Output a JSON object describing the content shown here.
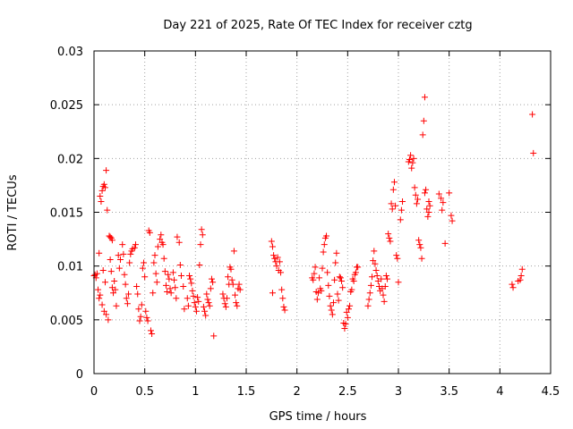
{
  "chart_data": {
    "type": "scatter",
    "title": "Day 221 of 2025, Rate Of TEC Index for receiver cztg",
    "xlabel": "GPS time / hours",
    "ylabel": "ROTI / TECUs",
    "xlim": [
      0,
      4.5
    ],
    "ylim": [
      0,
      0.03
    ],
    "xticks": [
      0,
      0.5,
      1,
      1.5,
      2,
      2.5,
      3,
      3.5,
      4,
      4.5
    ],
    "xtick_labels": [
      "0",
      "0.5",
      "1",
      "1.5",
      "2",
      "2.5",
      "3",
      "3.5",
      "4",
      "4.5"
    ],
    "yticks": [
      0,
      0.005,
      0.01,
      0.015,
      0.02,
      0.025,
      0.03
    ],
    "ytick_labels": [
      "0",
      "0.005",
      "0.01",
      "0.015",
      "0.02",
      "0.025",
      "0.03"
    ],
    "grid": true,
    "marker": "+",
    "marker_color": "#ff0000",
    "series": [
      {
        "name": "ROTI",
        "points": [
          [
            0.0,
            0.0091
          ],
          [
            0.01,
            0.0092
          ],
          [
            0.02,
            0.0089
          ],
          [
            0.03,
            0.0093
          ],
          [
            0.04,
            0.0078
          ],
          [
            0.05,
            0.007
          ],
          [
            0.06,
            0.0073
          ],
          [
            0.05,
            0.0112
          ],
          [
            0.06,
            0.0165
          ],
          [
            0.07,
            0.016
          ],
          [
            0.08,
            0.017
          ],
          [
            0.09,
            0.0174
          ],
          [
            0.1,
            0.0176
          ],
          [
            0.11,
            0.0173
          ],
          [
            0.12,
            0.0189
          ],
          [
            0.13,
            0.0152
          ],
          [
            0.08,
            0.0064
          ],
          [
            0.1,
            0.0058
          ],
          [
            0.12,
            0.0055
          ],
          [
            0.14,
            0.005
          ],
          [
            0.09,
            0.0096
          ],
          [
            0.11,
            0.0085
          ],
          [
            0.15,
            0.0128
          ],
          [
            0.16,
            0.0127
          ],
          [
            0.17,
            0.0126
          ],
          [
            0.18,
            0.0124
          ],
          [
            0.16,
            0.0106
          ],
          [
            0.17,
            0.0095
          ],
          [
            0.18,
            0.008
          ],
          [
            0.19,
            0.0075
          ],
          [
            0.2,
            0.0086
          ],
          [
            0.21,
            0.0078
          ],
          [
            0.22,
            0.0063
          ],
          [
            0.24,
            0.011
          ],
          [
            0.25,
            0.0098
          ],
          [
            0.26,
            0.0106
          ],
          [
            0.28,
            0.012
          ],
          [
            0.29,
            0.0111
          ],
          [
            0.3,
            0.0092
          ],
          [
            0.31,
            0.0083
          ],
          [
            0.32,
            0.007
          ],
          [
            0.33,
            0.0065
          ],
          [
            0.34,
            0.0074
          ],
          [
            0.35,
            0.0103
          ],
          [
            0.36,
            0.0111
          ],
          [
            0.37,
            0.0114
          ],
          [
            0.38,
            0.0116
          ],
          [
            0.4,
            0.0117
          ],
          [
            0.41,
            0.012
          ],
          [
            0.42,
            0.0081
          ],
          [
            0.43,
            0.0074
          ],
          [
            0.44,
            0.006
          ],
          [
            0.45,
            0.0049
          ],
          [
            0.46,
            0.0053
          ],
          [
            0.47,
            0.0064
          ],
          [
            0.48,
            0.0098
          ],
          [
            0.49,
            0.0103
          ],
          [
            0.5,
            0.009
          ],
          [
            0.51,
            0.0058
          ],
          [
            0.52,
            0.0052
          ],
          [
            0.53,
            0.0049
          ],
          [
            0.54,
            0.0133
          ],
          [
            0.55,
            0.0131
          ],
          [
            0.56,
            0.004
          ],
          [
            0.57,
            0.0037
          ],
          [
            0.58,
            0.0075
          ],
          [
            0.59,
            0.0103
          ],
          [
            0.6,
            0.011
          ],
          [
            0.61,
            0.0093
          ],
          [
            0.62,
            0.0085
          ],
          [
            0.63,
            0.0118
          ],
          [
            0.65,
            0.0125
          ],
          [
            0.66,
            0.0129
          ],
          [
            0.67,
            0.0122
          ],
          [
            0.68,
            0.012
          ],
          [
            0.69,
            0.0107
          ],
          [
            0.7,
            0.0095
          ],
          [
            0.71,
            0.0082
          ],
          [
            0.72,
            0.0076
          ],
          [
            0.73,
            0.0092
          ],
          [
            0.74,
            0.0088
          ],
          [
            0.75,
            0.0079
          ],
          [
            0.76,
            0.0075
          ],
          [
            0.78,
            0.0094
          ],
          [
            0.79,
            0.0087
          ],
          [
            0.8,
            0.008
          ],
          [
            0.81,
            0.007
          ],
          [
            0.82,
            0.0127
          ],
          [
            0.84,
            0.0122
          ],
          [
            0.85,
            0.0101
          ],
          [
            0.86,
            0.0091
          ],
          [
            0.88,
            0.0081
          ],
          [
            0.89,
            0.006
          ],
          [
            0.92,
            0.007
          ],
          [
            0.93,
            0.0063
          ],
          [
            0.94,
            0.0091
          ],
          [
            0.95,
            0.0088
          ],
          [
            0.96,
            0.0084
          ],
          [
            0.97,
            0.0077
          ],
          [
            0.98,
            0.0072
          ],
          [
            0.99,
            0.0066
          ],
          [
            1.0,
            0.0062
          ],
          [
            1.01,
            0.0058
          ],
          [
            1.02,
            0.0071
          ],
          [
            1.03,
            0.0067
          ],
          [
            1.04,
            0.0101
          ],
          [
            1.05,
            0.012
          ],
          [
            1.06,
            0.0134
          ],
          [
            1.07,
            0.0129
          ],
          [
            1.08,
            0.0062
          ],
          [
            1.09,
            0.0058
          ],
          [
            1.1,
            0.0054
          ],
          [
            1.11,
            0.0074
          ],
          [
            1.12,
            0.0069
          ],
          [
            1.13,
            0.0066
          ],
          [
            1.14,
            0.0063
          ],
          [
            1.15,
            0.0079
          ],
          [
            1.16,
            0.0088
          ],
          [
            1.17,
            0.0085
          ],
          [
            1.18,
            0.0035
          ],
          [
            1.27,
            0.0074
          ],
          [
            1.28,
            0.007
          ],
          [
            1.29,
            0.0065
          ],
          [
            1.3,
            0.0062
          ],
          [
            1.31,
            0.007
          ],
          [
            1.32,
            0.009
          ],
          [
            1.33,
            0.0083
          ],
          [
            1.34,
            0.0099
          ],
          [
            1.35,
            0.0097
          ],
          [
            1.36,
            0.0087
          ],
          [
            1.37,
            0.0083
          ],
          [
            1.38,
            0.0114
          ],
          [
            1.39,
            0.0073
          ],
          [
            1.4,
            0.0066
          ],
          [
            1.41,
            0.0063
          ],
          [
            1.42,
            0.0079
          ],
          [
            1.43,
            0.0083
          ],
          [
            1.44,
            0.0078
          ],
          [
            1.75,
            0.0123
          ],
          [
            1.76,
            0.0118
          ],
          [
            1.77,
            0.011
          ],
          [
            1.78,
            0.0107
          ],
          [
            1.79,
            0.0104
          ],
          [
            1.8,
            0.01
          ],
          [
            1.81,
            0.0108
          ],
          [
            1.82,
            0.0096
          ],
          [
            1.83,
            0.0104
          ],
          [
            1.84,
            0.0094
          ],
          [
            1.85,
            0.0078
          ],
          [
            1.86,
            0.007
          ],
          [
            1.87,
            0.0062
          ],
          [
            1.88,
            0.0059
          ],
          [
            1.76,
            0.0075
          ],
          [
            2.15,
            0.0089
          ],
          [
            2.16,
            0.0087
          ],
          [
            2.17,
            0.0093
          ],
          [
            2.18,
            0.0099
          ],
          [
            2.19,
            0.0076
          ],
          [
            2.2,
            0.0069
          ],
          [
            2.21,
            0.0075
          ],
          [
            2.22,
            0.0089
          ],
          [
            2.23,
            0.0079
          ],
          [
            2.24,
            0.0077
          ],
          [
            2.25,
            0.0098
          ],
          [
            2.26,
            0.0113
          ],
          [
            2.27,
            0.012
          ],
          [
            2.28,
            0.0126
          ],
          [
            2.29,
            0.0128
          ],
          [
            2.3,
            0.0094
          ],
          [
            2.31,
            0.0082
          ],
          [
            2.32,
            0.0072
          ],
          [
            2.33,
            0.0063
          ],
          [
            2.34,
            0.0059
          ],
          [
            2.35,
            0.0055
          ],
          [
            2.36,
            0.0066
          ],
          [
            2.37,
            0.0087
          ],
          [
            2.38,
            0.0103
          ],
          [
            2.39,
            0.0112
          ],
          [
            2.4,
            0.0074
          ],
          [
            2.41,
            0.0068
          ],
          [
            2.42,
            0.009
          ],
          [
            2.43,
            0.0089
          ],
          [
            2.44,
            0.0086
          ],
          [
            2.45,
            0.008
          ],
          [
            2.46,
            0.0047
          ],
          [
            2.47,
            0.0042
          ],
          [
            2.48,
            0.0046
          ],
          [
            2.49,
            0.0057
          ],
          [
            2.5,
            0.0052
          ],
          [
            2.51,
            0.006
          ],
          [
            2.52,
            0.0063
          ],
          [
            2.53,
            0.0076
          ],
          [
            2.54,
            0.0078
          ],
          [
            2.55,
            0.0088
          ],
          [
            2.56,
            0.0086
          ],
          [
            2.57,
            0.0092
          ],
          [
            2.58,
            0.0094
          ],
          [
            2.59,
            0.0099
          ],
          [
            2.6,
            0.0099
          ],
          [
            2.7,
            0.0063
          ],
          [
            2.71,
            0.0069
          ],
          [
            2.72,
            0.0075
          ],
          [
            2.73,
            0.0082
          ],
          [
            2.74,
            0.009
          ],
          [
            2.75,
            0.0105
          ],
          [
            2.76,
            0.0114
          ],
          [
            2.77,
            0.0102
          ],
          [
            2.78,
            0.0096
          ],
          [
            2.79,
            0.0091
          ],
          [
            2.8,
            0.0086
          ],
          [
            2.81,
            0.0081
          ],
          [
            2.82,
            0.0077
          ],
          [
            2.83,
            0.0088
          ],
          [
            2.84,
            0.0079
          ],
          [
            2.85,
            0.0073
          ],
          [
            2.86,
            0.0067
          ],
          [
            2.87,
            0.0081
          ],
          [
            2.88,
            0.0091
          ],
          [
            2.89,
            0.0088
          ],
          [
            2.9,
            0.013
          ],
          [
            2.91,
            0.0126
          ],
          [
            2.92,
            0.0123
          ],
          [
            2.93,
            0.0158
          ],
          [
            2.94,
            0.0153
          ],
          [
            2.95,
            0.0171
          ],
          [
            2.96,
            0.0178
          ],
          [
            2.97,
            0.0156
          ],
          [
            2.98,
            0.011
          ],
          [
            2.99,
            0.0107
          ],
          [
            3.0,
            0.0085
          ],
          [
            3.02,
            0.0143
          ],
          [
            3.03,
            0.0152
          ],
          [
            3.04,
            0.016
          ],
          [
            3.1,
            0.0197
          ],
          [
            3.11,
            0.0199
          ],
          [
            3.12,
            0.0203
          ],
          [
            3.13,
            0.0191
          ],
          [
            3.14,
            0.0196
          ],
          [
            3.15,
            0.02
          ],
          [
            3.16,
            0.0173
          ],
          [
            3.17,
            0.0166
          ],
          [
            3.18,
            0.0158
          ],
          [
            3.19,
            0.0162
          ],
          [
            3.2,
            0.0124
          ],
          [
            3.21,
            0.012
          ],
          [
            3.22,
            0.0117
          ],
          [
            3.23,
            0.0107
          ],
          [
            3.26,
            0.0168
          ],
          [
            3.27,
            0.0171
          ],
          [
            3.28,
            0.0153
          ],
          [
            3.29,
            0.0146
          ],
          [
            3.3,
            0.016
          ],
          [
            3.31,
            0.0156
          ],
          [
            3.3,
            0.015
          ],
          [
            3.24,
            0.0222
          ],
          [
            3.25,
            0.0235
          ],
          [
            3.26,
            0.0257
          ],
          [
            3.4,
            0.0167
          ],
          [
            3.42,
            0.0163
          ],
          [
            3.43,
            0.0152
          ],
          [
            3.44,
            0.0159
          ],
          [
            3.46,
            0.0121
          ],
          [
            3.5,
            0.0168
          ],
          [
            3.52,
            0.0147
          ],
          [
            3.53,
            0.0142
          ],
          [
            4.12,
            0.0083
          ],
          [
            4.13,
            0.008
          ],
          [
            4.18,
            0.0086
          ],
          [
            4.2,
            0.0087
          ],
          [
            4.21,
            0.0091
          ],
          [
            4.22,
            0.0097
          ],
          [
            4.32,
            0.0241
          ],
          [
            4.33,
            0.0205
          ]
        ]
      }
    ]
  }
}
